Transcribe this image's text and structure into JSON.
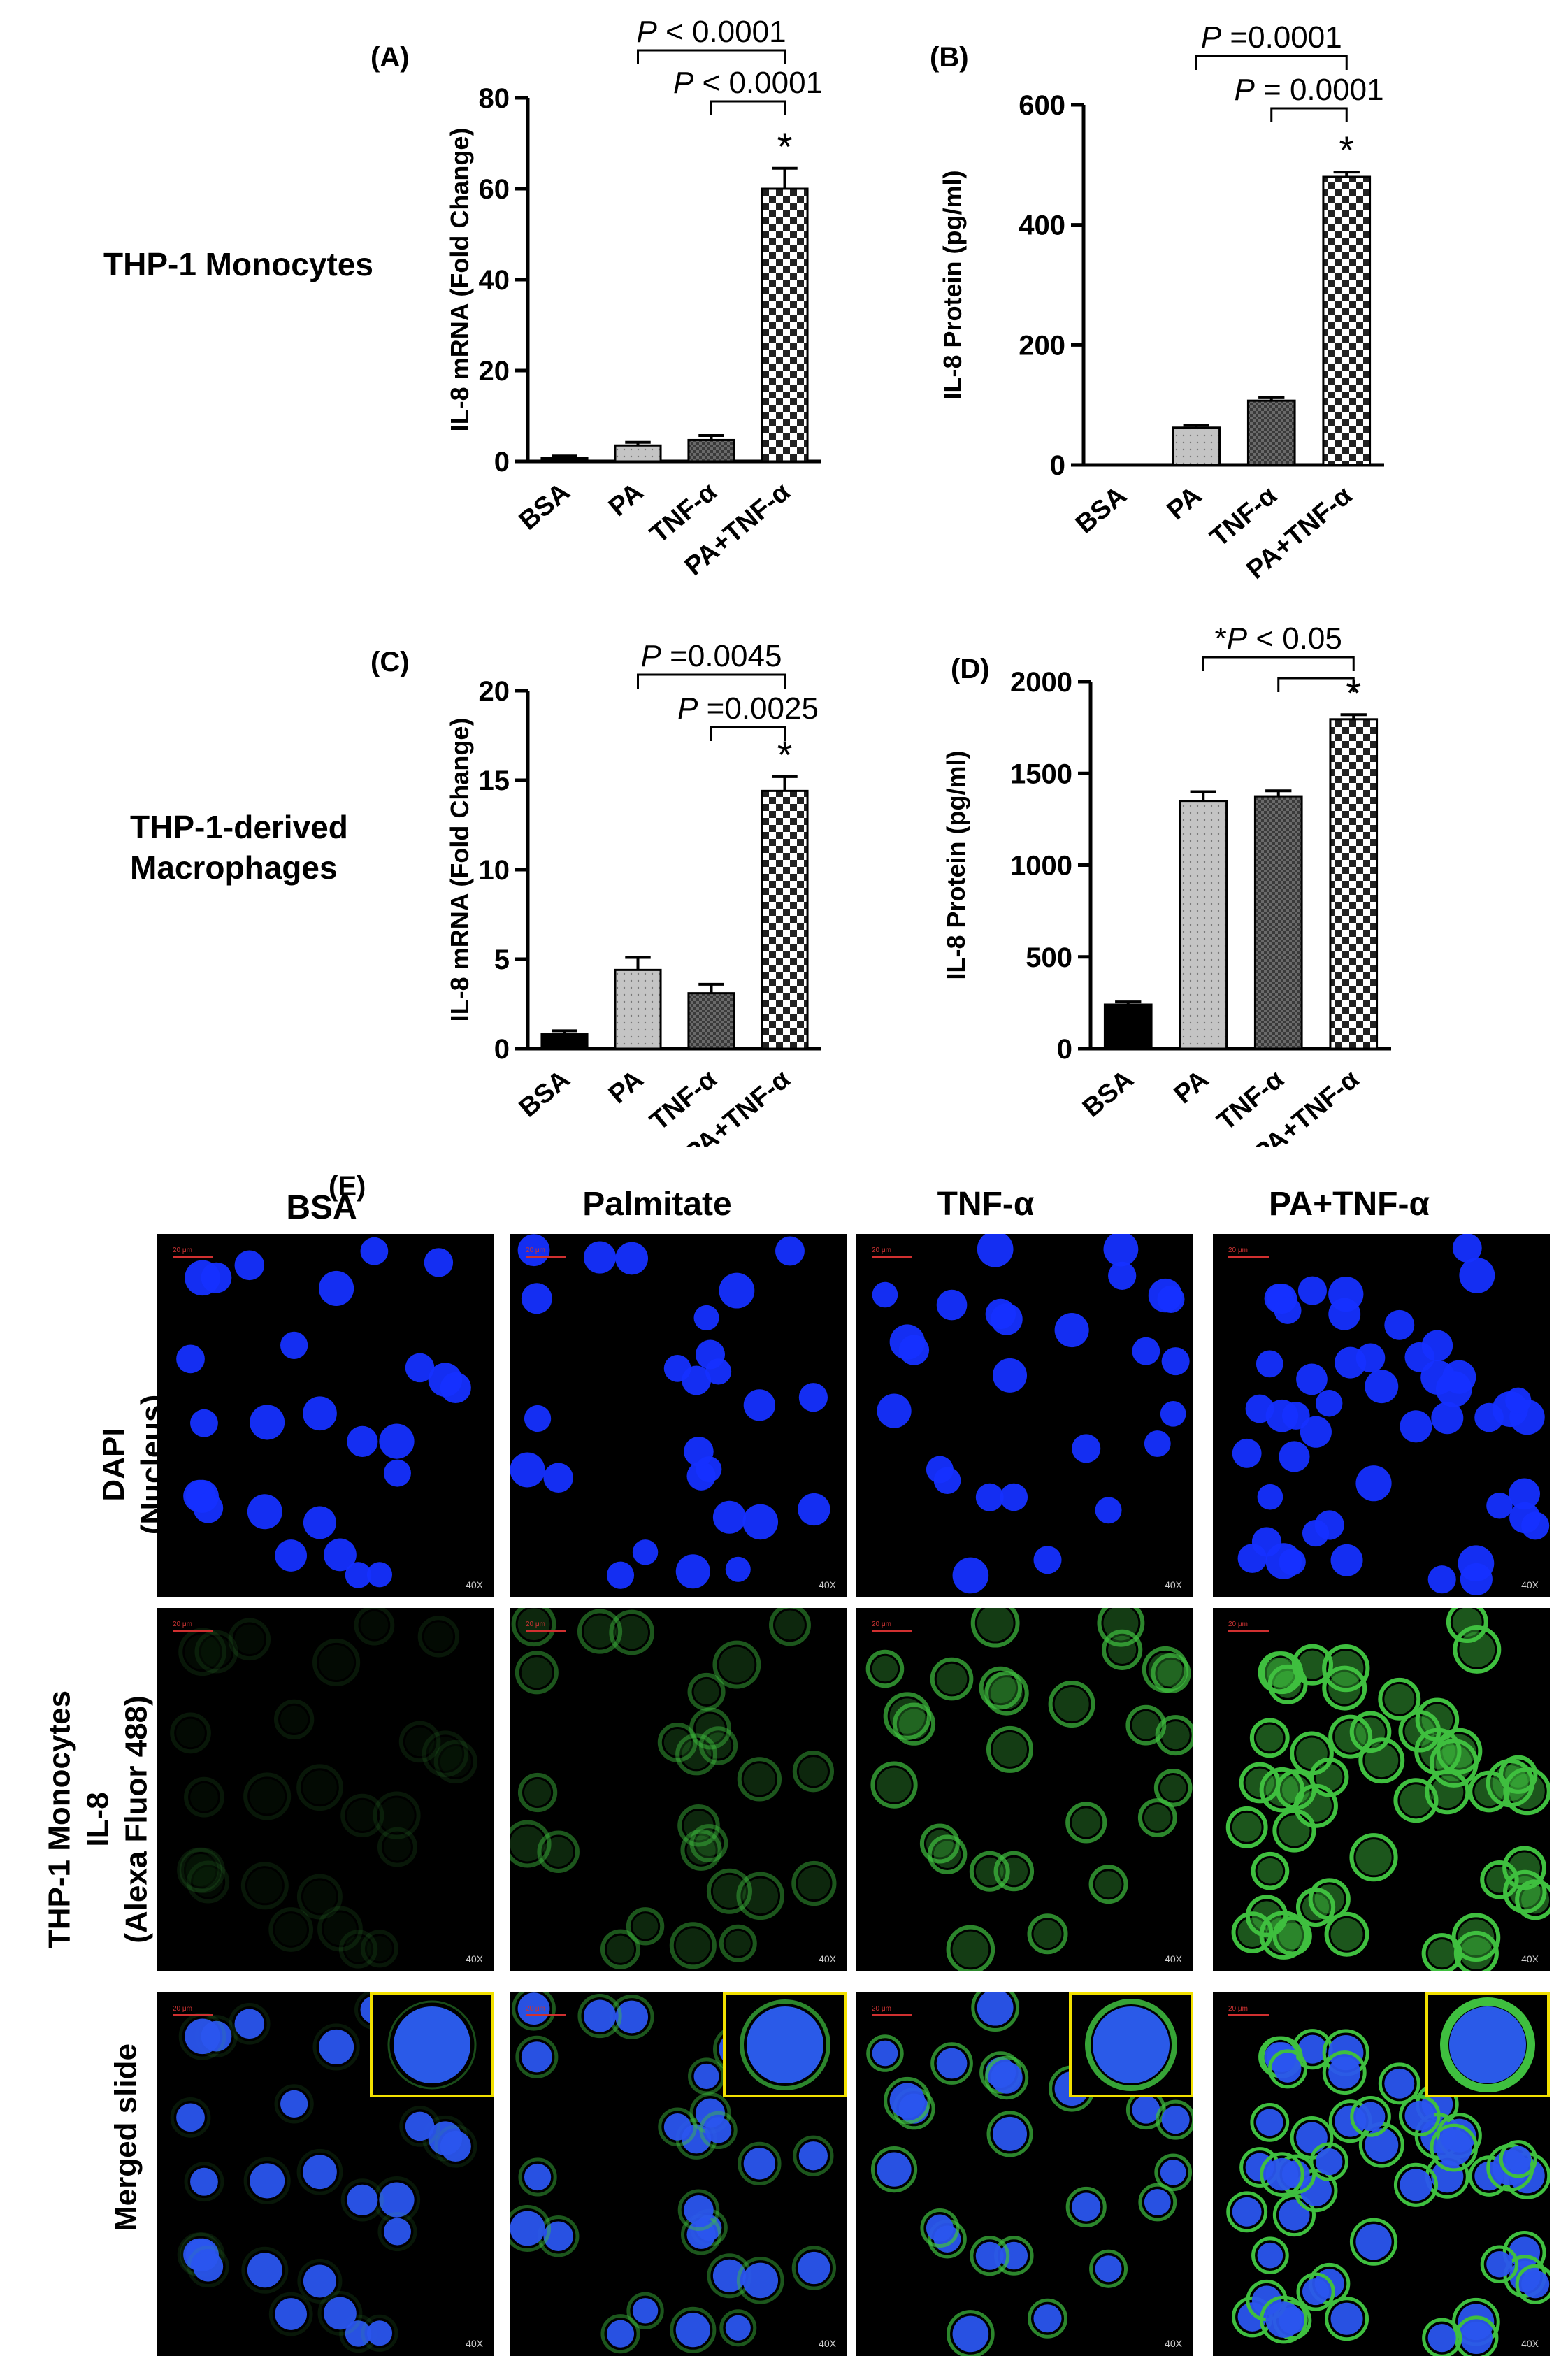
{
  "row_labels": {
    "monocytes": "THP-1 Monocytes",
    "macrophages_line1": "THP-1-derived",
    "macrophages_line2": "Macrophages"
  },
  "chart_data": [
    {
      "panel": "(A)",
      "type": "bar",
      "ylabel": "IL-8 mRNA (Fold Change)",
      "categories": [
        "BSA",
        "PA",
        "TNF-α",
        "PA+TNF-α"
      ],
      "values": [
        0.8,
        3.5,
        4.7,
        60
      ],
      "errors": [
        0.4,
        0.7,
        1.0,
        4.5
      ],
      "ylim": [
        0,
        80
      ],
      "yticks": [
        0,
        20,
        40,
        60,
        80
      ],
      "fills": [
        "#000000",
        "#bdbdbd",
        "#5a5a5a",
        "checker"
      ],
      "stars": [
        false,
        false,
        false,
        true
      ],
      "star_label": "*",
      "brackets": [
        {
          "from": 1,
          "to": 3,
          "text_italic": "P",
          "text": " < 0.0001"
        },
        {
          "from": 2,
          "to": 3,
          "text_italic": "P",
          "text": " < 0.0001"
        }
      ]
    },
    {
      "panel": "(B)",
      "type": "bar",
      "ylabel": "IL-8 Protein (pg/ml)",
      "categories": [
        "BSA",
        "PA",
        "TNF-α",
        "PA+TNF-α"
      ],
      "values": [
        0,
        62,
        107,
        480
      ],
      "errors": [
        0,
        4,
        5,
        8
      ],
      "ylim": [
        0,
        600
      ],
      "yticks": [
        0,
        200,
        400,
        600
      ],
      "fills": [
        "#000000",
        "#bdbdbd",
        "#5a5a5a",
        "checker"
      ],
      "stars": [
        false,
        false,
        false,
        true
      ],
      "star_label": "*",
      "brackets": [
        {
          "from": 1,
          "to": 3,
          "text_italic": "P",
          "text": " =0.0001"
        },
        {
          "from": 2,
          "to": 3,
          "text_italic": "P",
          "text": " = 0.0001"
        }
      ]
    },
    {
      "panel": "(C)",
      "type": "bar",
      "ylabel": "IL-8 mRNA (Fold Change)",
      "categories": [
        "BSA",
        "PA",
        "TNF-α",
        "PA+TNF-α"
      ],
      "values": [
        0.8,
        4.4,
        3.1,
        14.4
      ],
      "errors": [
        0.2,
        0.7,
        0.5,
        0.8
      ],
      "ylim": [
        0,
        20
      ],
      "yticks": [
        0,
        5,
        10,
        15,
        20
      ],
      "fills": [
        "#000000",
        "#bdbdbd",
        "#5a5a5a",
        "checker"
      ],
      "stars": [
        false,
        false,
        false,
        true
      ],
      "star_label": "*",
      "brackets": [
        {
          "from": 1,
          "to": 3,
          "text_italic": "P",
          "text": " =0.0045"
        },
        {
          "from": 2,
          "to": 3,
          "text_italic": "P",
          "text": " =0.0025"
        }
      ]
    },
    {
      "panel": "(D)",
      "type": "bar",
      "ylabel": "IL-8 Protein (pg/ml)",
      "categories": [
        "BSA",
        "PA",
        "TNF-α",
        "PA+TNF-α"
      ],
      "values": [
        240,
        1350,
        1375,
        1795
      ],
      "errors": [
        15,
        50,
        30,
        25
      ],
      "ylim": [
        0,
        2000
      ],
      "yticks": [
        0,
        500,
        1000,
        1500,
        2000
      ],
      "fills": [
        "#000000",
        "#bdbdbd",
        "#5a5a5a",
        "checker"
      ],
      "stars": [
        false,
        false,
        false,
        true
      ],
      "star_label": "*",
      "brackets": [
        {
          "from": 1,
          "to": 3,
          "text_prefix": "*",
          "text_italic": "P",
          "text": " < 0.05"
        },
        {
          "from": 2,
          "to": 3,
          "text_italic": "P",
          "text": ""
        }
      ]
    }
  ],
  "microscopy": {
    "panel": "(E)",
    "columns": [
      "BSA",
      "Palmitate",
      "TNF-α",
      "PA+TNF-α"
    ],
    "row_labels": {
      "dapi_line1": "DAPI",
      "dapi_line2": "(Nucleus)",
      "il8_line1": "THP-1 Monocytes",
      "il8_line2": "IL-8",
      "il8_line3": "(Alexa Fluor 488)",
      "merged": "Merged slide"
    },
    "magnification": "40X",
    "scale_bar": "20 μm",
    "colors": {
      "nucleus": "#1530ff",
      "il8": "#3fbf3f",
      "inset_border": "#f2e000",
      "scale_bar": "#d03030"
    }
  }
}
